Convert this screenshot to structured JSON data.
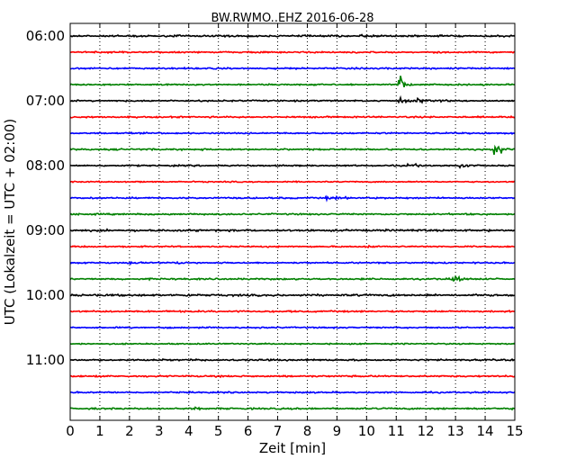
{
  "chart_data": {
    "type": "line",
    "title": "BW.RWMO..EHZ 2016-06-28",
    "xlabel": "Zeit  [min]",
    "ylabel": "UTC (Lokalzeit = UTC + 02:00)",
    "xlim": [
      0,
      15
    ],
    "x_ticks": [
      "0",
      "1",
      "2",
      "3",
      "4",
      "5",
      "6",
      "7",
      "8",
      "9",
      "10",
      "11",
      "12",
      "13",
      "14",
      "15"
    ],
    "y_tick_labels": [
      "06:00",
      "07:00",
      "08:00",
      "09:00",
      "10:00",
      "11:00"
    ],
    "grid": "vertical dotted",
    "trace_interval_min": 15,
    "start_time": "06:00",
    "trace_colors": [
      "#000000",
      "#ff0000",
      "#0000ff",
      "#008000"
    ],
    "events": [
      {
        "trace": 0,
        "x": 9.8,
        "amp": 0.45
      },
      {
        "trace": 0,
        "x": 3.5,
        "amp": 0.15
      },
      {
        "trace": 0,
        "x": 5.2,
        "amp": 0.15
      },
      {
        "trace": 3,
        "x": 11.1,
        "amp": 1.25
      },
      {
        "trace": 4,
        "x": 11.1,
        "amp": 0.35
      },
      {
        "trace": 4,
        "x": 11.7,
        "amp": 0.3
      },
      {
        "trace": 4,
        "x": 12.3,
        "amp": 0.2
      },
      {
        "trace": 7,
        "x": 14.3,
        "amp": 0.6
      },
      {
        "trace": 7,
        "x": 14.5,
        "amp": 0.5
      },
      {
        "trace": 8,
        "x": 11.4,
        "amp": 0.4
      },
      {
        "trace": 8,
        "x": 13.1,
        "amp": 0.55
      },
      {
        "trace": 10,
        "x": 8.6,
        "amp": 0.2
      },
      {
        "trace": 10,
        "x": 9.0,
        "amp": 0.2
      },
      {
        "trace": 13,
        "x": 10.0,
        "amp": 0.15
      },
      {
        "trace": 14,
        "x": 2.0,
        "amp": 0.15
      },
      {
        "trace": 14,
        "x": 3.6,
        "amp": 0.18
      },
      {
        "trace": 15,
        "x": 12.95,
        "amp": 0.6
      },
      {
        "trace": 16,
        "x": 3.8,
        "amp": 0.15
      },
      {
        "trace": 22,
        "x": 14.0,
        "amp": 0.1
      },
      {
        "trace": 23,
        "x": 4.1,
        "amp": 0.15
      }
    ]
  }
}
